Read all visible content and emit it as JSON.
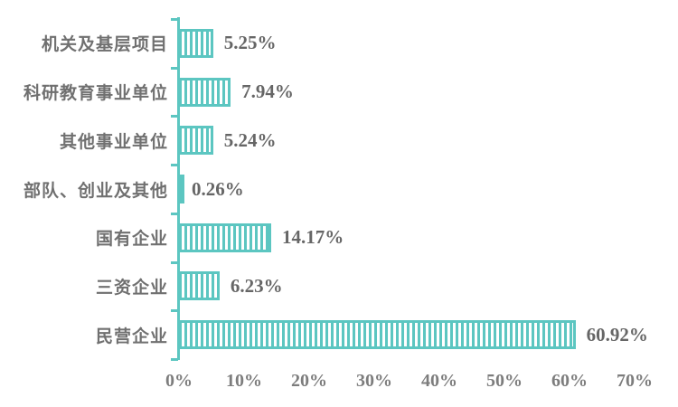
{
  "chart_data": {
    "type": "bar",
    "orientation": "horizontal",
    "title": "",
    "xlabel": "",
    "ylabel": "",
    "categories": [
      "机关及基层项目",
      "科研教育事业单位",
      "其他事业单位",
      "部队、创业及其他",
      "国有企业",
      "三资企业",
      "民营企业"
    ],
    "values": [
      5.25,
      7.94,
      5.24,
      0.26,
      14.17,
      6.23,
      60.92
    ],
    "value_labels": [
      "5.25%",
      "7.94%",
      "5.24%",
      "0.26%",
      "14.17%",
      "6.23%",
      "60.92%"
    ],
    "x_ticks": [
      "0%",
      "10%",
      "20%",
      "30%",
      "40%",
      "50%",
      "60%",
      "70%"
    ],
    "x_tick_values": [
      0,
      10,
      20,
      30,
      40,
      50,
      60,
      70
    ],
    "xlim": [
      0,
      70
    ],
    "grid": false,
    "legend": false,
    "bar_style": "vertical-stripe-hatch"
  },
  "colors": {
    "background": "#FFFFFF",
    "bar": "#5CC6C1",
    "bar_stripe_gap": "#FFFFFF",
    "axis_line": "#5CC6C1",
    "category_label": "#707070",
    "value_label": "#666666",
    "x_tick_label": "#7D7D7D"
  }
}
